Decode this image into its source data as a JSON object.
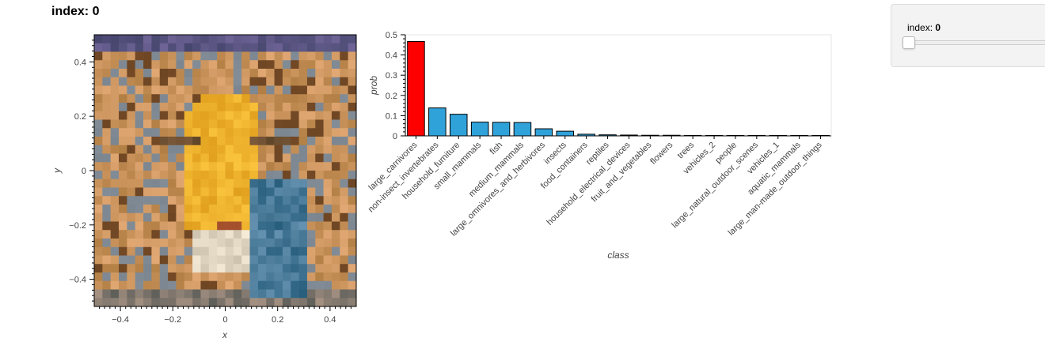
{
  "page_title": "index: 0",
  "widget": {
    "label": "index: ",
    "value": "0",
    "slider_value": 0
  },
  "image_panel": {
    "xlabel": "x",
    "ylabel": "y",
    "xlim": [
      -0.5,
      0.5
    ],
    "ylim": [
      -0.5,
      0.5
    ],
    "xticks": [
      "−0.4",
      "−0.2",
      "0",
      "0.2",
      "0.4"
    ],
    "yticks": [
      "0.4",
      "0.2",
      "0",
      "−0.2",
      "−0.4"
    ]
  },
  "chart_data": {
    "type": "bar",
    "xlabel": "class",
    "ylabel": "prob",
    "ylim": [
      0,
      0.5
    ],
    "yticks": [
      "0",
      "0.1",
      "0.2",
      "0.3",
      "0.4",
      "0.5"
    ],
    "categories": [
      "large_carnivores",
      "non-insect_invertebrates",
      "household_furniture",
      "small_mammals",
      "fish",
      "medium_mammals",
      "large_omnivores_and_herbivores",
      "insects",
      "food_containers",
      "reptiles",
      "household_electrical_devices",
      "fruit_and_vegetables",
      "flowers",
      "trees",
      "vehicles_2",
      "people",
      "large_natural_outdoor_scenes",
      "vehicles_1",
      "aquatic_mammals",
      "large_man-made_outdoor_things"
    ],
    "values": [
      0.467,
      0.138,
      0.107,
      0.068,
      0.067,
      0.066,
      0.035,
      0.023,
      0.008,
      0.005,
      0.004,
      0.003,
      0.003,
      0.002,
      0.002,
      0.002,
      0.002,
      0.001,
      0.001,
      0.001
    ],
    "colors": {
      "highlight": "#ff0000",
      "default": "#30a2da"
    },
    "highlight_index": 0
  }
}
